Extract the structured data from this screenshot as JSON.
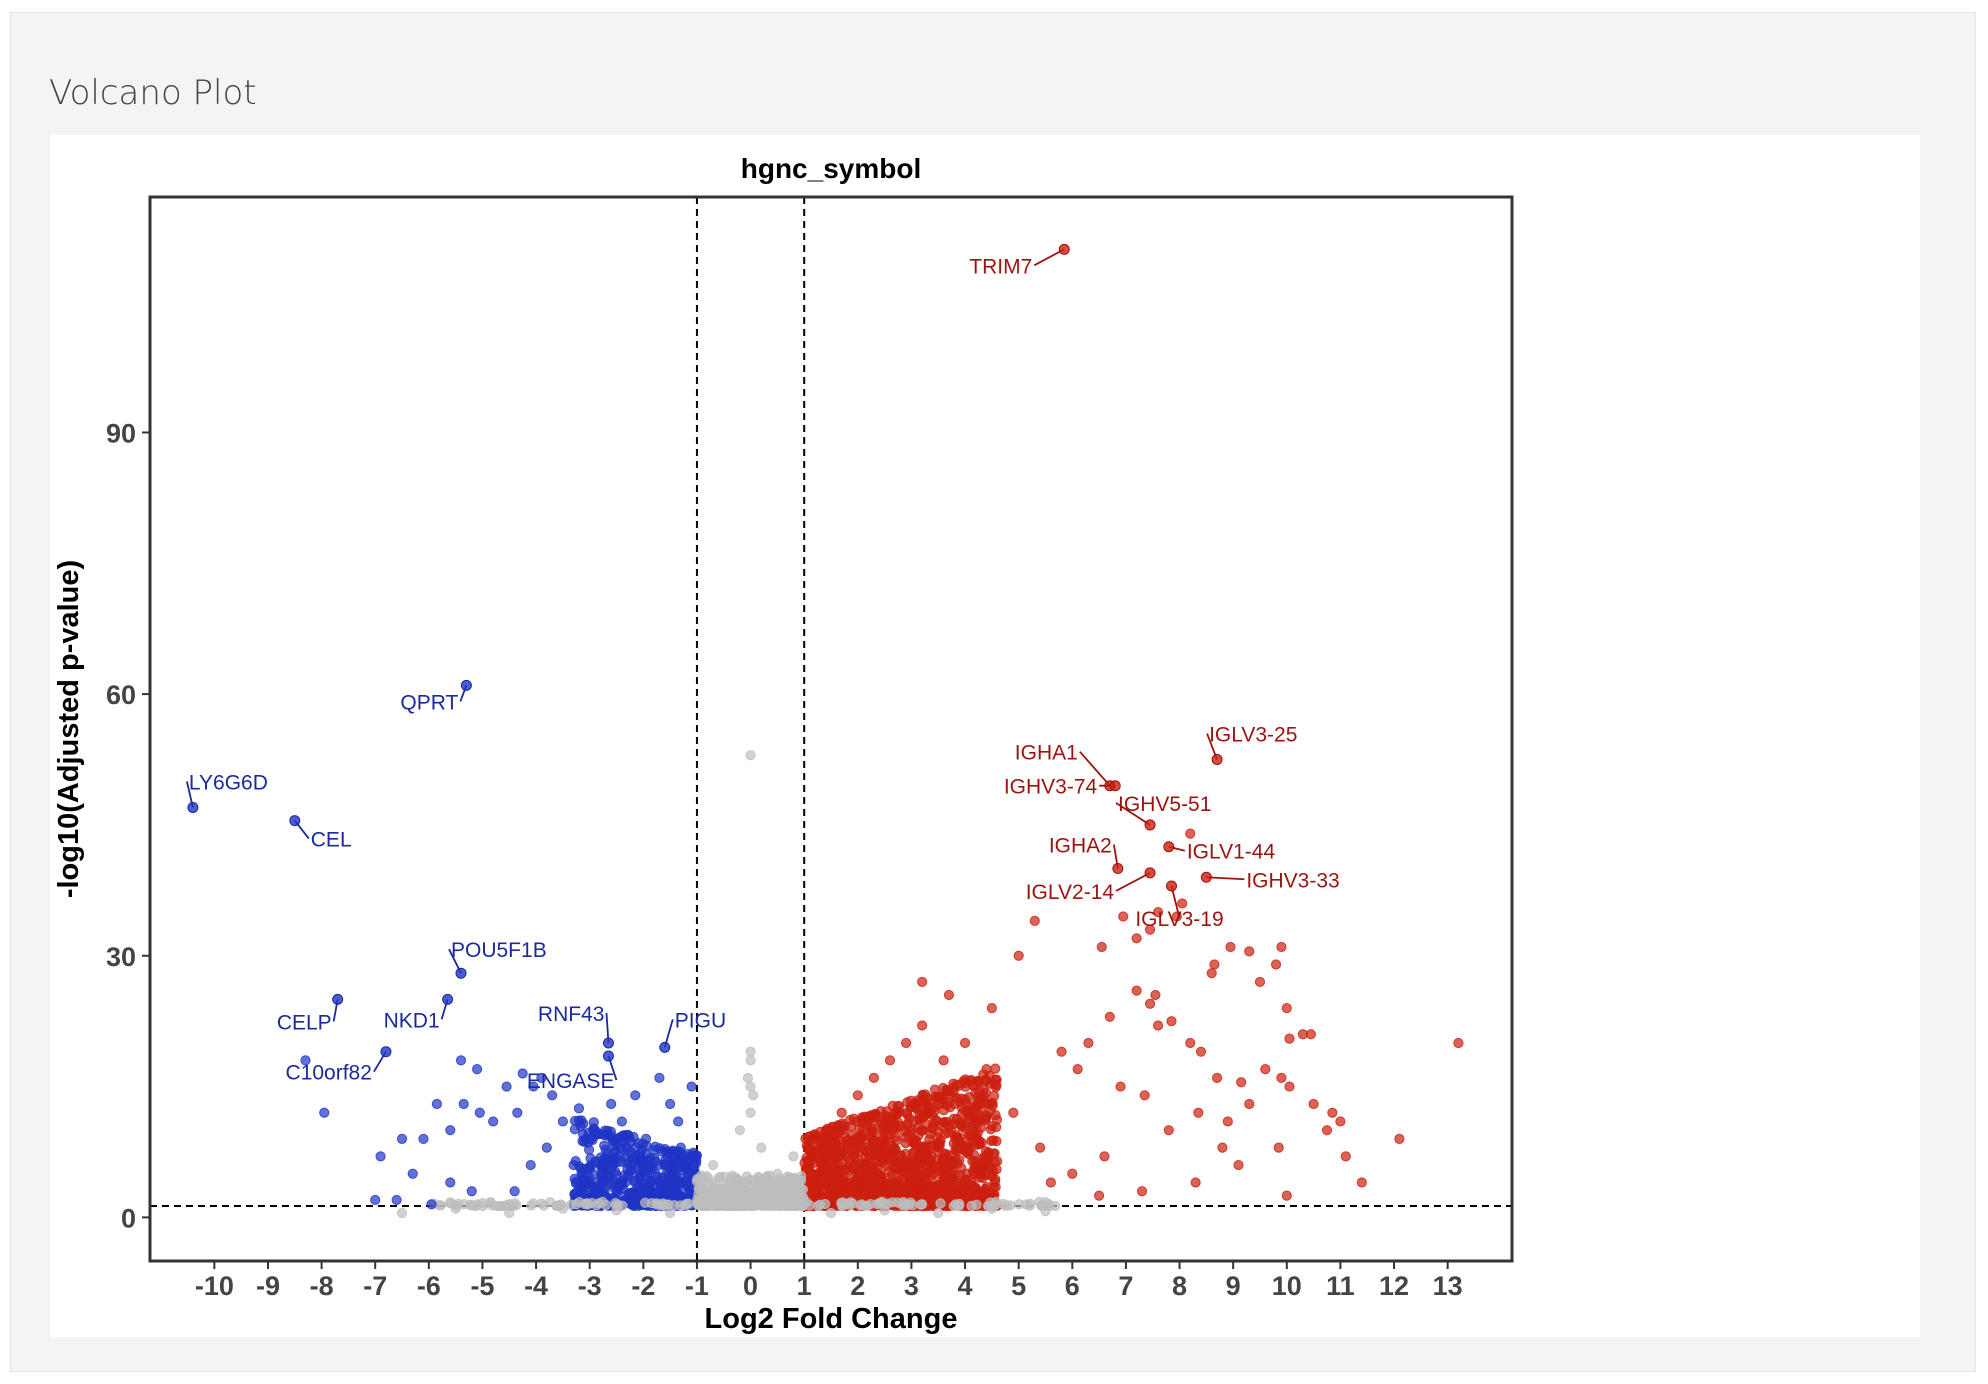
{
  "page": {
    "title": "Volcano Plot"
  },
  "chart_data": {
    "type": "scatter",
    "title": "hgnc_symbol",
    "xlabel": "Log2 Fold Change",
    "ylabel": "-log10(Adjusted p-value)",
    "xlim": [
      -11.2,
      14.2
    ],
    "ylim": [
      -5,
      117
    ],
    "xticks": [
      -10,
      -9,
      -8,
      -7,
      -6,
      -5,
      -4,
      -3,
      -2,
      -1,
      0,
      1,
      2,
      3,
      4,
      5,
      6,
      7,
      8,
      9,
      10,
      11,
      12,
      13
    ],
    "yticks": [
      0,
      30,
      60,
      90
    ],
    "thresholds": {
      "log2fc": [
        -1,
        1
      ],
      "neg_log10_padj": 1.3
    },
    "colors": {
      "down": "#1f35c6",
      "up": "#cc1f0f",
      "ns": "#bdbdbd",
      "down_label": "#1b2a9c",
      "up_label": "#9b1410"
    },
    "labeled_points": [
      {
        "gene": "TRIM7",
        "x": 5.85,
        "y": 111,
        "group": "up"
      },
      {
        "gene": "QPRT",
        "x": -5.3,
        "y": 61,
        "group": "down"
      },
      {
        "gene": "LY6G6D",
        "x": -10.4,
        "y": 47,
        "group": "down"
      },
      {
        "gene": "CEL",
        "x": -8.5,
        "y": 45.5,
        "group": "down"
      },
      {
        "gene": "POU5F1B",
        "x": -5.4,
        "y": 28,
        "group": "down"
      },
      {
        "gene": "CELP",
        "x": -7.7,
        "y": 25,
        "group": "down"
      },
      {
        "gene": "NKD1",
        "x": -5.65,
        "y": 25,
        "group": "down"
      },
      {
        "gene": "C10orf82",
        "x": -6.8,
        "y": 19,
        "group": "down"
      },
      {
        "gene": "RNF43",
        "x": -2.65,
        "y": 20,
        "group": "down"
      },
      {
        "gene": "ENGASE",
        "x": -2.65,
        "y": 18.5,
        "group": "down"
      },
      {
        "gene": "PIGU",
        "x": -1.6,
        "y": 19.5,
        "group": "down"
      },
      {
        "gene": "IGLV3-25",
        "x": 8.7,
        "y": 52.5,
        "group": "up"
      },
      {
        "gene": "IGHA1",
        "x": 6.7,
        "y": 49.5,
        "group": "up"
      },
      {
        "gene": "IGHV3-74",
        "x": 6.8,
        "y": 49.5,
        "group": "up"
      },
      {
        "gene": "IGHV5-51",
        "x": 7.45,
        "y": 45,
        "group": "up"
      },
      {
        "gene": "IGHA2",
        "x": 6.85,
        "y": 40,
        "group": "up"
      },
      {
        "gene": "IGLV1-44",
        "x": 7.8,
        "y": 42.5,
        "group": "up"
      },
      {
        "gene": "IGLV2-14",
        "x": 7.45,
        "y": 39.5,
        "group": "up"
      },
      {
        "gene": "IGHV3-33",
        "x": 8.5,
        "y": 39,
        "group": "up"
      },
      {
        "gene": "IGLV3-19",
        "x": 7.85,
        "y": 38,
        "group": "up"
      }
    ],
    "other_points": {
      "down": [
        [
          -8.3,
          18
        ],
        [
          -7.95,
          12
        ],
        [
          -6.9,
          7
        ],
        [
          -6.5,
          9
        ],
        [
          -6.3,
          5
        ],
        [
          -6.1,
          9
        ],
        [
          -5.85,
          13
        ],
        [
          -5.6,
          10
        ],
        [
          -5.4,
          18
        ],
        [
          -5.35,
          13
        ],
        [
          -5.1,
          17
        ],
        [
          -5.05,
          12
        ],
        [
          -4.8,
          11
        ],
        [
          -4.55,
          15
        ],
        [
          -4.35,
          12
        ],
        [
          -4.25,
          16.5
        ],
        [
          -4.05,
          15
        ],
        [
          -3.9,
          16
        ],
        [
          -5.6,
          4
        ],
        [
          -5.2,
          3
        ],
        [
          -4.4,
          3
        ],
        [
          -6.6,
          2
        ],
        [
          -5.95,
          1.5
        ],
        [
          -7.0,
          2
        ],
        [
          -3.7,
          14
        ],
        [
          -3.5,
          11
        ],
        [
          -3.2,
          12.5
        ],
        [
          -2.9,
          10
        ],
        [
          -4.1,
          6
        ],
        [
          -3.8,
          8
        ],
        [
          -3.3,
          6
        ],
        [
          -2.6,
          13
        ],
        [
          -2.4,
          11
        ],
        [
          -2.15,
          14
        ],
        [
          -1.95,
          9
        ],
        [
          -1.7,
          16
        ],
        [
          -1.5,
          13
        ],
        [
          -1.35,
          11
        ],
        [
          -1.1,
          15
        ],
        [
          -3.1,
          4
        ],
        [
          -2.8,
          3
        ],
        [
          -2.2,
          5.5
        ],
        [
          -1.9,
          3.5
        ],
        [
          -1.6,
          6
        ],
        [
          -1.3,
          8
        ],
        [
          -1.15,
          5
        ]
      ],
      "up": [
        [
          8.2,
          44
        ],
        [
          8.05,
          36
        ],
        [
          7.95,
          34.5
        ],
        [
          7.6,
          35
        ],
        [
          7.45,
          33
        ],
        [
          7.2,
          32
        ],
        [
          6.95,
          34.5
        ],
        [
          6.55,
          31
        ],
        [
          5.3,
          34
        ],
        [
          5.0,
          30
        ],
        [
          9.3,
          30.5
        ],
        [
          9.8,
          29
        ],
        [
          9.9,
          31
        ],
        [
          9.5,
          27
        ],
        [
          8.6,
          28
        ],
        [
          8.65,
          29
        ],
        [
          8.95,
          31
        ],
        [
          10.0,
          24
        ],
        [
          10.05,
          20.5
        ],
        [
          10.3,
          21
        ],
        [
          10.45,
          21
        ],
        [
          13.2,
          20
        ],
        [
          12.1,
          9
        ],
        [
          11.4,
          4
        ],
        [
          11.1,
          7
        ],
        [
          10.75,
          10
        ],
        [
          10.85,
          12
        ],
        [
          10.0,
          2.5
        ],
        [
          9.6,
          17
        ],
        [
          9.9,
          16
        ],
        [
          10.05,
          15
        ],
        [
          3.2,
          27
        ],
        [
          3.7,
          25.5
        ],
        [
          4.5,
          24
        ],
        [
          7.2,
          26
        ],
        [
          7.45,
          24.5
        ],
        [
          7.6,
          22
        ],
        [
          7.85,
          22.5
        ],
        [
          8.2,
          20
        ],
        [
          8.4,
          19
        ],
        [
          8.7,
          16
        ],
        [
          9.15,
          15.5
        ],
        [
          7.55,
          25.5
        ],
        [
          6.7,
          23
        ],
        [
          6.3,
          20
        ],
        [
          5.8,
          19
        ],
        [
          6.1,
          17
        ],
        [
          6.9,
          15
        ],
        [
          7.35,
          14
        ],
        [
          8.35,
          12
        ],
        [
          8.9,
          11
        ],
        [
          9.3,
          13
        ],
        [
          9.85,
          8
        ],
        [
          9.1,
          6
        ],
        [
          8.3,
          4
        ],
        [
          7.3,
          3
        ],
        [
          6.5,
          2.5
        ],
        [
          6.0,
          5
        ],
        [
          5.4,
          8
        ],
        [
          4.9,
          12
        ],
        [
          4.4,
          17
        ],
        [
          4.0,
          20
        ],
        [
          3.6,
          18
        ],
        [
          3.2,
          22
        ],
        [
          2.9,
          20
        ],
        [
          2.6,
          18
        ],
        [
          2.3,
          16
        ],
        [
          2.0,
          14
        ],
        [
          1.7,
          12
        ],
        [
          1.5,
          10
        ],
        [
          1.3,
          8
        ],
        [
          1.1,
          6
        ],
        [
          1.2,
          4
        ],
        [
          2.2,
          3
        ],
        [
          3.1,
          4
        ],
        [
          4.2,
          5
        ],
        [
          5.6,
          4
        ],
        [
          6.6,
          7
        ],
        [
          7.8,
          10
        ],
        [
          8.8,
          8
        ],
        [
          10.5,
          13
        ],
        [
          11.0,
          11
        ]
      ],
      "ns": [
        [
          0,
          53
        ],
        [
          0,
          19
        ],
        [
          0,
          18
        ],
        [
          0,
          15
        ],
        [
          0,
          12
        ],
        [
          -0.7,
          6
        ],
        [
          -0.5,
          4
        ],
        [
          -0.3,
          2
        ],
        [
          0.3,
          3
        ],
        [
          0.5,
          5
        ],
        [
          0.8,
          7
        ],
        [
          -0.85,
          3
        ],
        [
          0.9,
          2
        ],
        [
          -6.5,
          0.5
        ],
        [
          -5.5,
          1
        ],
        [
          -4.5,
          0.5
        ],
        [
          -3.5,
          1
        ],
        [
          -2.5,
          0.8
        ],
        [
          -1.5,
          0.5
        ],
        [
          1.5,
          0.5
        ],
        [
          2.5,
          0.8
        ],
        [
          3.5,
          0.5
        ],
        [
          4.5,
          1
        ],
        [
          5.5,
          0.7
        ],
        [
          -0.2,
          10
        ],
        [
          0.2,
          8
        ],
        [
          0.05,
          14
        ],
        [
          -0.05,
          16
        ]
      ]
    }
  }
}
